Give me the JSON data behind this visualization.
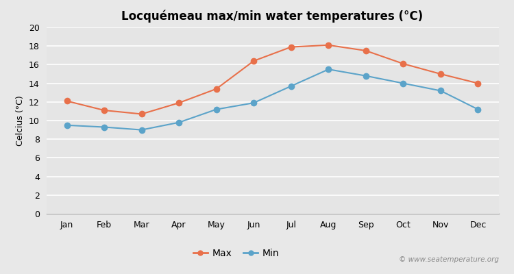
{
  "title": "Locquémeau max/min water temperatures (°C)",
  "ylabel": "Celcius (°C)",
  "months": [
    "Jan",
    "Feb",
    "Mar",
    "Apr",
    "May",
    "Jun",
    "Jul",
    "Aug",
    "Sep",
    "Oct",
    "Nov",
    "Dec"
  ],
  "max_values": [
    12.1,
    11.1,
    10.7,
    11.9,
    13.4,
    16.4,
    17.9,
    18.1,
    17.5,
    16.1,
    15.0,
    14.0
  ],
  "min_values": [
    9.5,
    9.3,
    9.0,
    9.8,
    11.2,
    11.9,
    13.7,
    15.5,
    14.8,
    14.0,
    13.2,
    11.2
  ],
  "max_color": "#e8704a",
  "min_color": "#5ba3c9",
  "bg_color": "#e8e8e8",
  "plot_bg_color": "#e5e5e5",
  "grid_color": "#ffffff",
  "ylim": [
    0,
    20
  ],
  "yticks": [
    0,
    2,
    4,
    6,
    8,
    10,
    12,
    14,
    16,
    18,
    20
  ],
  "watermark": "© www.seatemperature.org",
  "legend_labels": [
    "Max",
    "Min"
  ]
}
